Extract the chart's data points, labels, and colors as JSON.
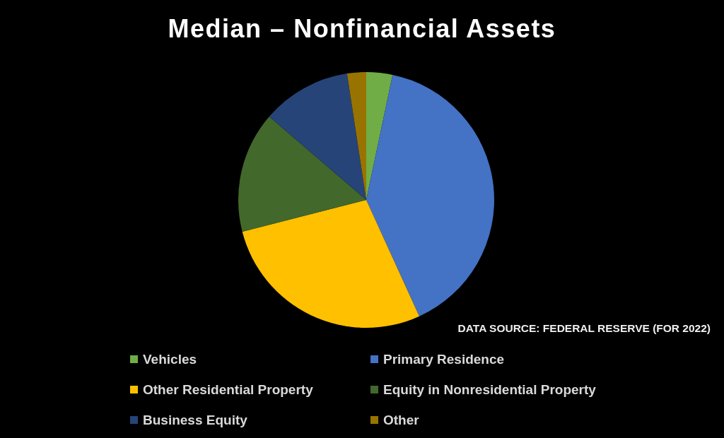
{
  "chart_data": {
    "type": "pie",
    "title": "Median – Nonfinancial Assets",
    "categories": [
      "Vehicles",
      "Primary Residence",
      "Other Residential Property",
      "Equity in Nonresidential Property",
      "Business Equity",
      "Other"
    ],
    "values": [
      3.3,
      39.9,
      27.8,
      15.3,
      11.3,
      2.4
    ],
    "colors": [
      "#70ad47",
      "#4472c4",
      "#ffc000",
      "#43682b",
      "#264478",
      "#997300"
    ],
    "legend": "bottom",
    "annotations": [
      "DATA SOURCE: FEDERAL RESERVE (FOR 2022)"
    ]
  }
}
